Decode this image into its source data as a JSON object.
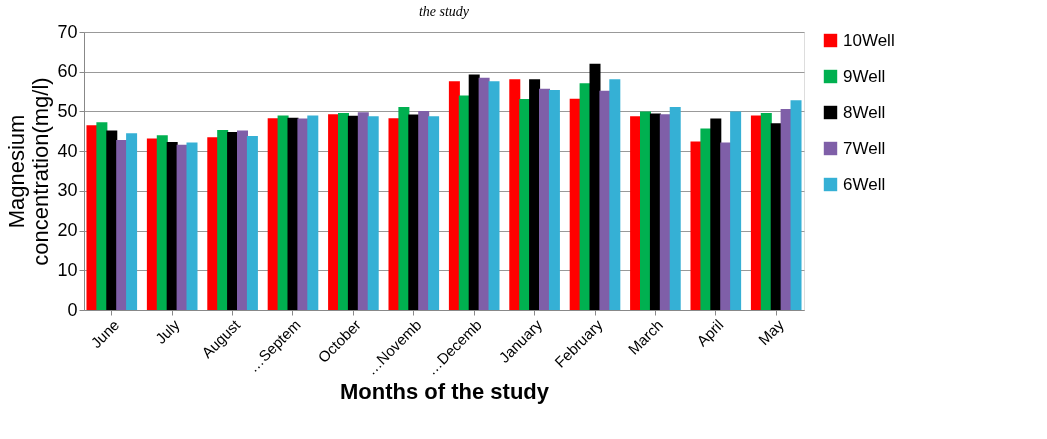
{
  "chart_data": {
    "type": "bar",
    "title": "the study",
    "xlabel": "Months of the study",
    "ylabel": "Magnesium concentration(mg/l)",
    "categories": [
      "June",
      "July",
      "August",
      "…Septem",
      "October",
      "…Novemb",
      "…Decemb",
      "January",
      "February",
      "March",
      "April",
      "May"
    ],
    "series": [
      {
        "name": "10Well",
        "color": "#ff0000",
        "values": [
          46.5,
          43.2,
          43.5,
          48.3,
          49.3,
          48.3,
          57.6,
          58.1,
          53.2,
          48.8,
          42.4,
          49.0
        ]
      },
      {
        "name": "9Well",
        "color": "#00b050",
        "values": [
          47.3,
          44.0,
          45.3,
          49.0,
          49.6,
          51.1,
          54.0,
          53.1,
          57.1,
          50.0,
          45.7,
          49.6
        ]
      },
      {
        "name": "8Well",
        "color": "#000000",
        "values": [
          45.2,
          42.3,
          44.8,
          48.4,
          48.9,
          49.2,
          59.3,
          58.1,
          62.0,
          49.5,
          48.2,
          47.0
        ]
      },
      {
        "name": "7Well",
        "color": "#7f5fa8",
        "values": [
          42.8,
          41.6,
          45.2,
          48.2,
          49.8,
          50.1,
          58.5,
          55.7,
          55.2,
          49.3,
          42.2,
          50.6
        ]
      },
      {
        "name": "6Well",
        "color": "#35b0d5",
        "values": [
          44.5,
          42.2,
          43.8,
          49.0,
          48.8,
          48.8,
          57.6,
          55.4,
          58.1,
          51.1,
          50.0,
          52.8
        ]
      }
    ],
    "ylim": [
      0,
      70
    ],
    "yticks": [
      0,
      10,
      20,
      30,
      40,
      50,
      60,
      70
    ],
    "grid": "y",
    "legend": "right"
  }
}
